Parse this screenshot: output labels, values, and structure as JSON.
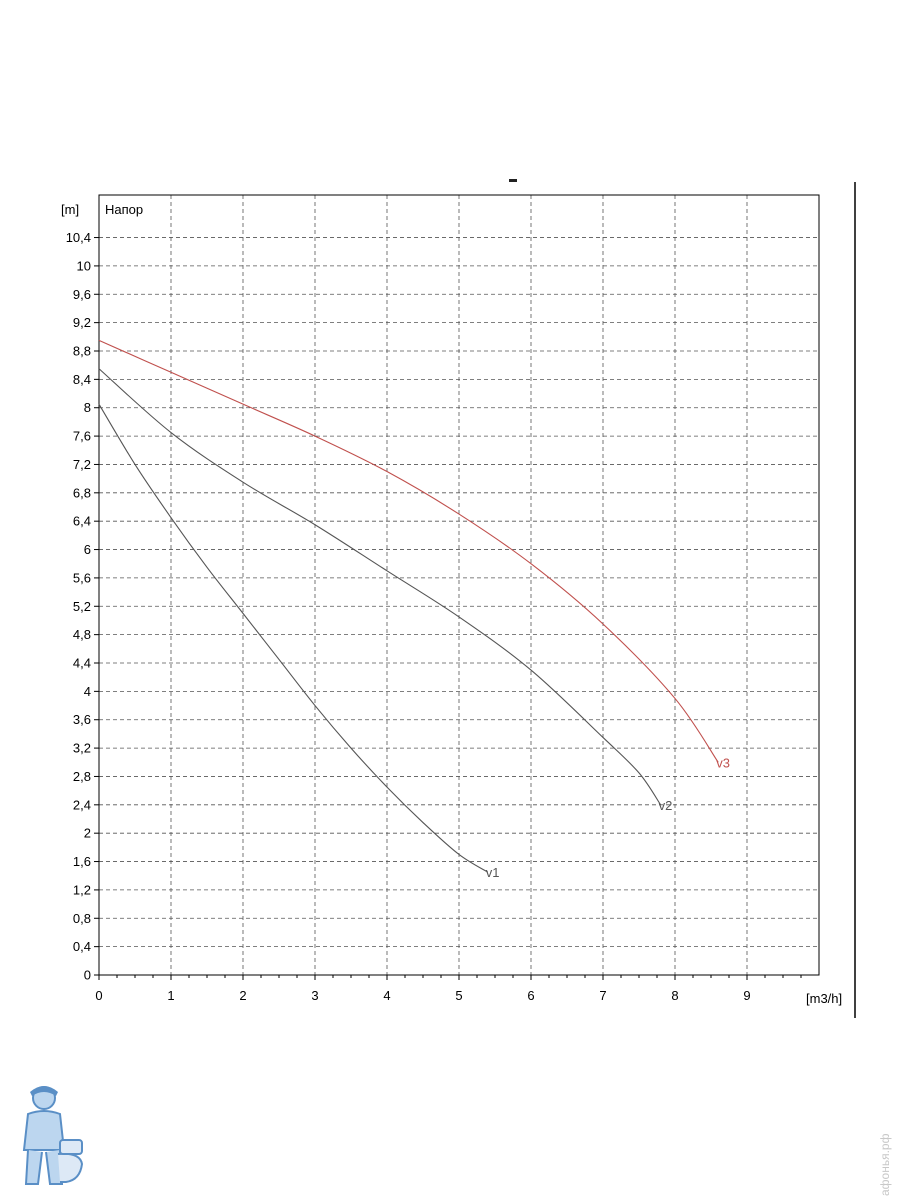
{
  "chart_data": {
    "type": "line",
    "title": "",
    "xlabel": "[m3/h]",
    "ylabel": "[m]",
    "series_title": "Напор",
    "xlim": [
      0,
      10
    ],
    "ylim": [
      0,
      11
    ],
    "x_ticks": [
      "0",
      "1",
      "2",
      "3",
      "4",
      "5",
      "6",
      "7",
      "8",
      "9"
    ],
    "y_ticks": [
      "0",
      "0,4",
      "0,8",
      "1,2",
      "1,6",
      "2",
      "2,4",
      "2,8",
      "3,2",
      "3,6",
      "4",
      "4,4",
      "4,8",
      "5,2",
      "5,6",
      "6",
      "6,4",
      "6,8",
      "7,2",
      "7,6",
      "8",
      "8,4",
      "8,8",
      "9,2",
      "9,6",
      "10",
      "10,4"
    ],
    "grid": true,
    "series": [
      {
        "name": "v1",
        "color": "#555555",
        "x": [
          0,
          0.5,
          1,
          1.5,
          2,
          2.5,
          3,
          3.5,
          4,
          4.5,
          5,
          5.4
        ],
        "y": [
          8.05,
          7.2,
          6.45,
          5.75,
          5.1,
          4.45,
          3.8,
          3.2,
          2.65,
          2.15,
          1.7,
          1.45
        ]
      },
      {
        "name": "v2",
        "color": "#555555",
        "x": [
          0,
          1,
          2,
          3,
          4,
          5,
          6,
          7,
          7.5,
          7.8
        ],
        "y": [
          8.55,
          7.65,
          6.95,
          6.35,
          5.7,
          5.05,
          4.3,
          3.35,
          2.85,
          2.4
        ]
      },
      {
        "name": "v3",
        "color": "#c0504d",
        "x": [
          0,
          1,
          2,
          3,
          4,
          5,
          6,
          7,
          8,
          8.6
        ],
        "y": [
          8.95,
          8.5,
          8.05,
          7.6,
          7.1,
          6.5,
          5.8,
          4.95,
          3.9,
          3.0
        ]
      }
    ]
  },
  "watermark": {
    "text": "афонья.рф"
  },
  "mascot": {
    "icon": "plumber-mascot-icon"
  }
}
